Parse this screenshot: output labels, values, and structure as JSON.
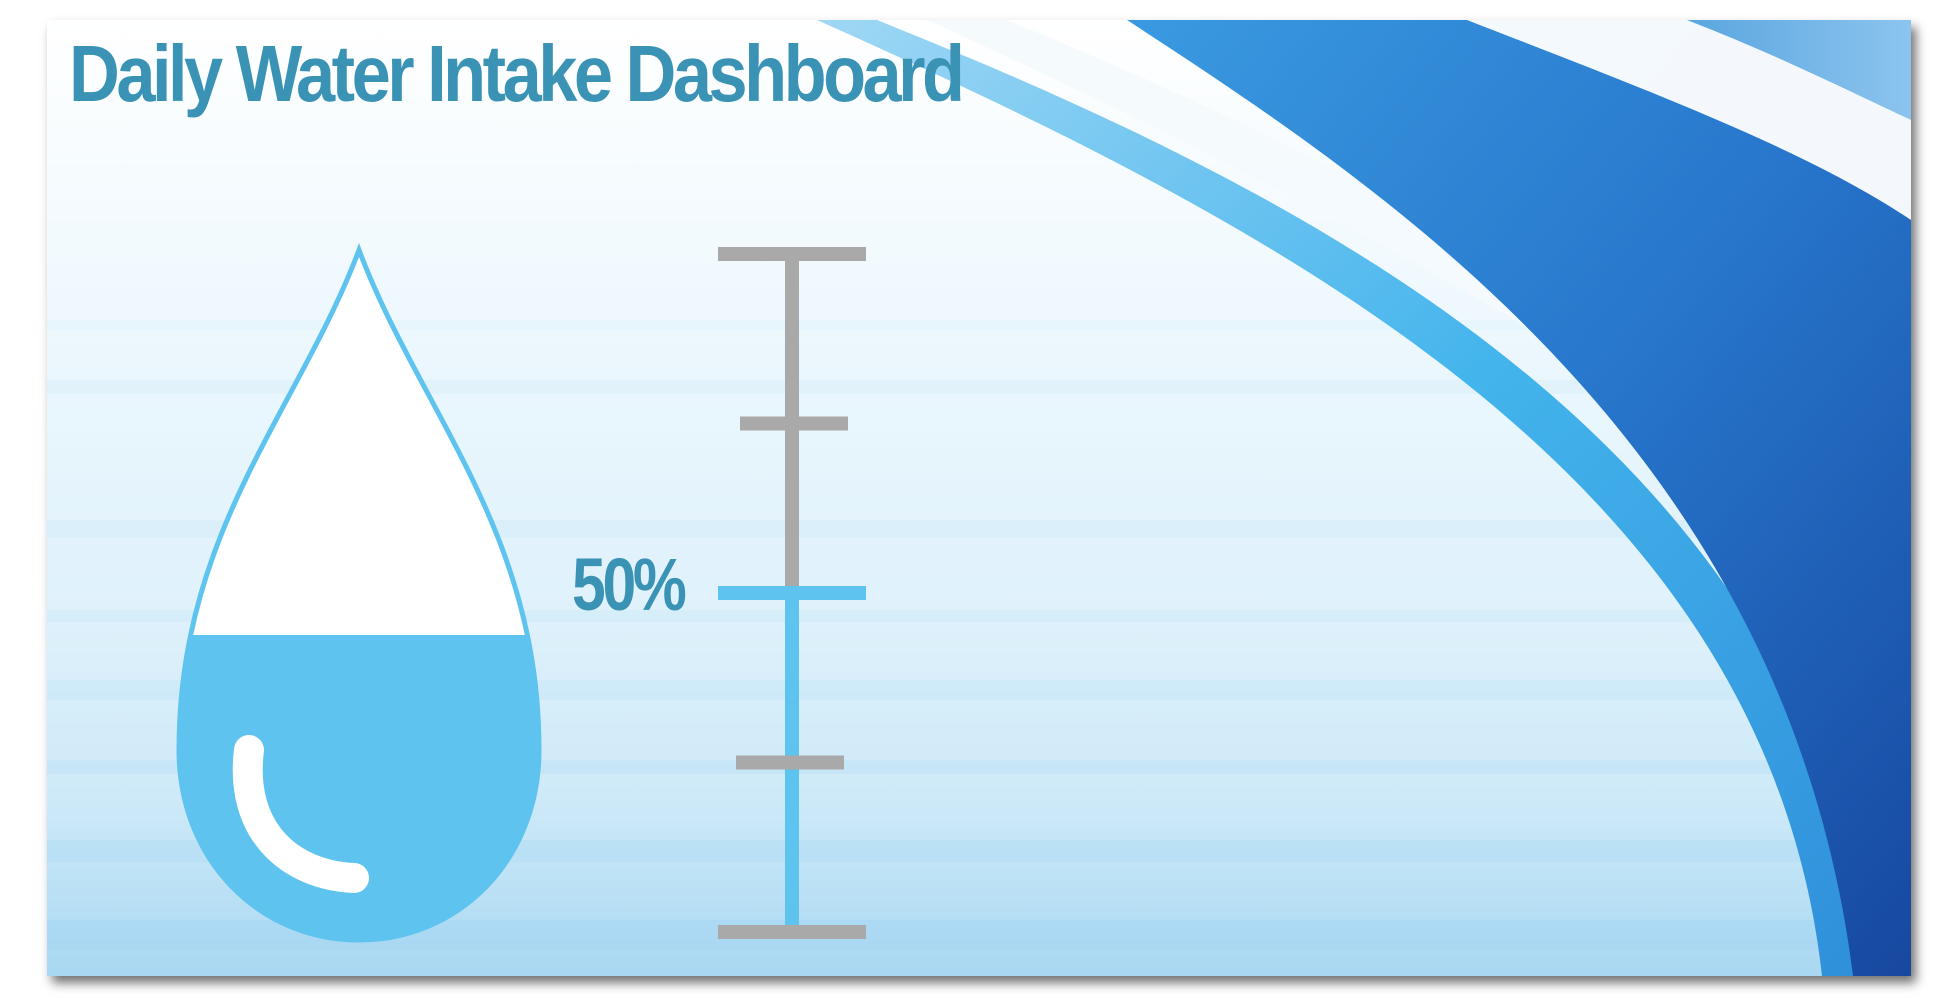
{
  "title": "Daily Water Intake Dashboard",
  "intake": {
    "progress_percent": 50,
    "progress_label": "50%"
  },
  "gauge": {
    "tick_count": 5
  },
  "colors": {
    "title": "#3a92b5",
    "water": "#5ec4ef",
    "gauge_empty": "#a9a9a9",
    "gauge_filled": "#5ec4ef",
    "wave_dark": "#1f5fb5",
    "wave_light": "#4db8ec"
  },
  "icons": {
    "drop": "water-drop-icon"
  }
}
